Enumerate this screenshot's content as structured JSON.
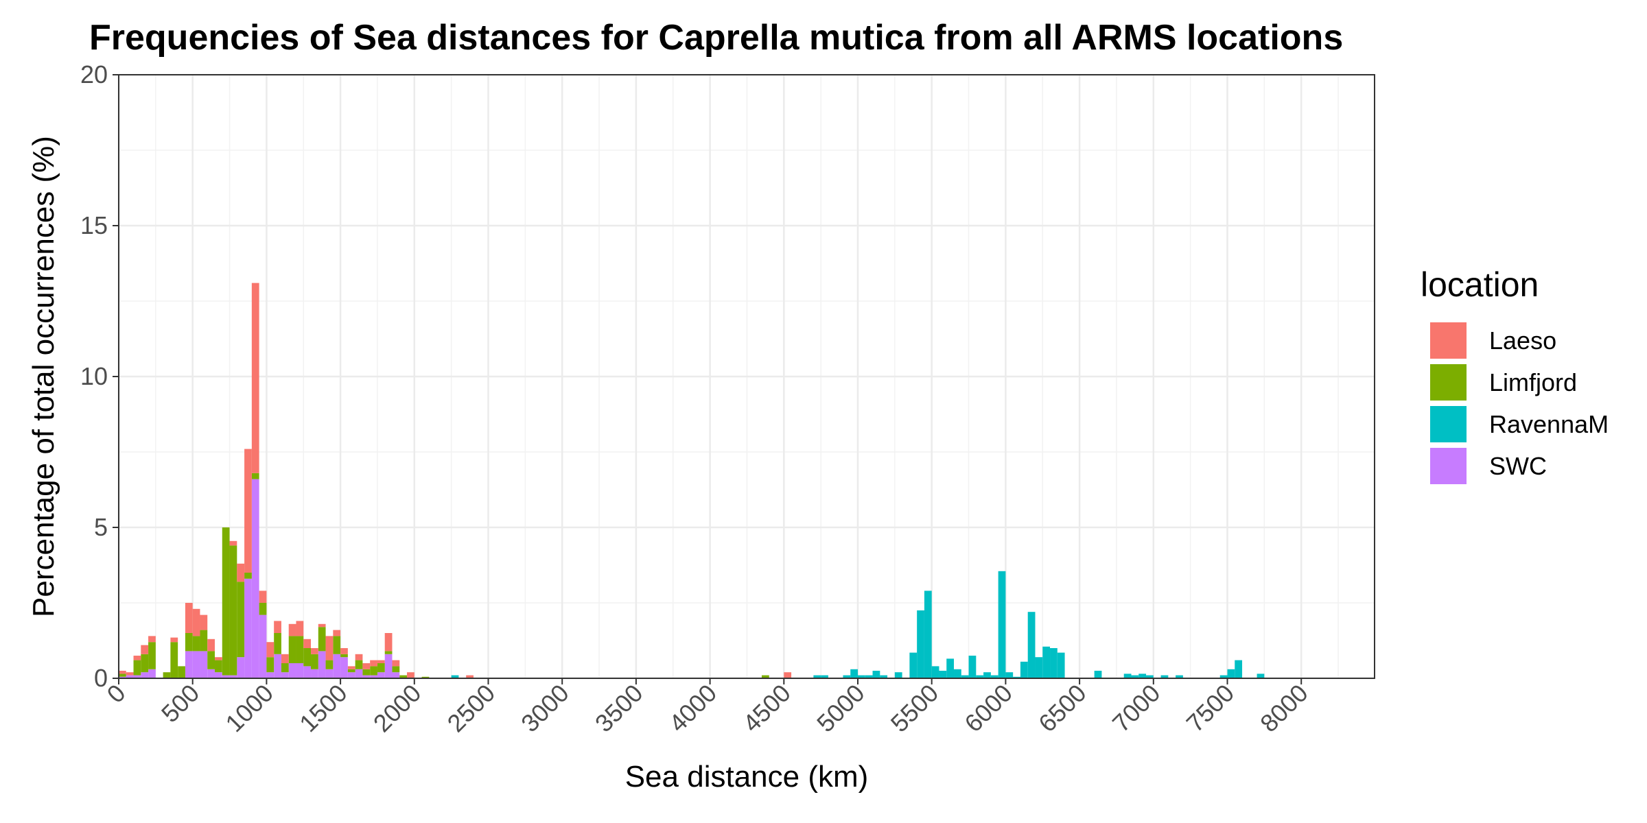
{
  "chart_data": {
    "type": "bar",
    "stacked": true,
    "title": "Frequencies of Sea distances for Caprella mutica from all ARMS locations",
    "xlabel": "Sea distance (km)",
    "ylabel": "Percentage of total occurrences (%)",
    "xlim": [
      0,
      8500
    ],
    "ylim": [
      0,
      20
    ],
    "bin_width": 50,
    "x_ticks": [
      0,
      500,
      1000,
      1500,
      2000,
      2500,
      3000,
      3500,
      4000,
      4500,
      5000,
      5500,
      6000,
      6500,
      7000,
      7500,
      8000
    ],
    "y_ticks": [
      0,
      5,
      10,
      15,
      20
    ],
    "grid": true,
    "legend": {
      "title": "location",
      "position": "right"
    },
    "stack_order": [
      "SWC",
      "RavennaM",
      "Limfjord",
      "Laeso"
    ],
    "series": [
      {
        "name": "Laeso",
        "color": "#F8766D",
        "points": [
          [
            0,
            0.1
          ],
          [
            50,
            0.1
          ],
          [
            100,
            0.15
          ],
          [
            150,
            0.3
          ],
          [
            200,
            0.2
          ],
          [
            350,
            0.15
          ],
          [
            450,
            1.0
          ],
          [
            500,
            0.9
          ],
          [
            550,
            0.5
          ],
          [
            600,
            0.4
          ],
          [
            650,
            0.1
          ],
          [
            750,
            0.15
          ],
          [
            800,
            0.6
          ],
          [
            850,
            4.1
          ],
          [
            900,
            6.3
          ],
          [
            950,
            0.4
          ],
          [
            1000,
            0.5
          ],
          [
            1050,
            0.4
          ],
          [
            1100,
            0.3
          ],
          [
            1150,
            0.4
          ],
          [
            1200,
            0.5
          ],
          [
            1250,
            0.3
          ],
          [
            1300,
            0.2
          ],
          [
            1350,
            0.1
          ],
          [
            1400,
            0.8
          ],
          [
            1450,
            0.2
          ],
          [
            1500,
            0.2
          ],
          [
            1550,
            0.1
          ],
          [
            1600,
            0.2
          ],
          [
            1650,
            0.2
          ],
          [
            1700,
            0.2
          ],
          [
            1750,
            0.1
          ],
          [
            1800,
            0.6
          ],
          [
            1850,
            0.2
          ],
          [
            1950,
            0.2
          ],
          [
            2350,
            0.1
          ],
          [
            4500,
            0.2
          ]
        ]
      },
      {
        "name": "Limfjord",
        "color": "#7CAE00",
        "points": [
          [
            0,
            0.1
          ],
          [
            100,
            0.5
          ],
          [
            150,
            0.6
          ],
          [
            200,
            0.9
          ],
          [
            300,
            0.2
          ],
          [
            350,
            1.2
          ],
          [
            400,
            0.4
          ],
          [
            450,
            0.6
          ],
          [
            500,
            0.5
          ],
          [
            550,
            0.7
          ],
          [
            600,
            0.6
          ],
          [
            650,
            0.4
          ],
          [
            700,
            4.9
          ],
          [
            750,
            4.3
          ],
          [
            800,
            2.5
          ],
          [
            850,
            0.2
          ],
          [
            900,
            0.2
          ],
          [
            950,
            0.4
          ],
          [
            1000,
            0.5
          ],
          [
            1050,
            0.7
          ],
          [
            1100,
            0.3
          ],
          [
            1150,
            0.9
          ],
          [
            1200,
            0.9
          ],
          [
            1250,
            0.6
          ],
          [
            1300,
            0.5
          ],
          [
            1350,
            0.8
          ],
          [
            1400,
            0.3
          ],
          [
            1450,
            0.6
          ],
          [
            1500,
            0.1
          ],
          [
            1550,
            0.1
          ],
          [
            1600,
            0.3
          ],
          [
            1650,
            0.2
          ],
          [
            1700,
            0.3
          ],
          [
            1750,
            0.3
          ],
          [
            1800,
            0.1
          ],
          [
            1850,
            0.2
          ],
          [
            1900,
            0.1
          ],
          [
            2050,
            0.05
          ],
          [
            4350,
            0.1
          ]
        ]
      },
      {
        "name": "RavennaM",
        "color": "#00BFC4",
        "points": [
          [
            2250,
            0.1
          ],
          [
            4700,
            0.1
          ],
          [
            4750,
            0.1
          ],
          [
            4900,
            0.1
          ],
          [
            4950,
            0.3
          ],
          [
            5000,
            0.1
          ],
          [
            5050,
            0.1
          ],
          [
            5100,
            0.25
          ],
          [
            5150,
            0.1
          ],
          [
            5250,
            0.2
          ],
          [
            5350,
            0.85
          ],
          [
            5400,
            2.25
          ],
          [
            5450,
            2.9
          ],
          [
            5500,
            0.4
          ],
          [
            5550,
            0.25
          ],
          [
            5600,
            0.65
          ],
          [
            5650,
            0.3
          ],
          [
            5700,
            0.1
          ],
          [
            5750,
            0.75
          ],
          [
            5800,
            0.1
          ],
          [
            5850,
            0.2
          ],
          [
            5900,
            0.1
          ],
          [
            5950,
            3.55
          ],
          [
            6000,
            0.2
          ],
          [
            6050,
            0.05
          ],
          [
            6100,
            0.55
          ],
          [
            6150,
            2.2
          ],
          [
            6200,
            0.7
          ],
          [
            6250,
            1.05
          ],
          [
            6300,
            1.0
          ],
          [
            6350,
            0.85
          ],
          [
            6600,
            0.25
          ],
          [
            6800,
            0.15
          ],
          [
            6850,
            0.1
          ],
          [
            6900,
            0.15
          ],
          [
            6950,
            0.1
          ],
          [
            7050,
            0.1
          ],
          [
            7150,
            0.1
          ],
          [
            7450,
            0.1
          ],
          [
            7500,
            0.3
          ],
          [
            7550,
            0.6
          ],
          [
            7700,
            0.15
          ]
        ]
      },
      {
        "name": "SWC",
        "color": "#C77CFF",
        "points": [
          [
            0,
            0.05
          ],
          [
            50,
            0.1
          ],
          [
            100,
            0.1
          ],
          [
            150,
            0.2
          ],
          [
            200,
            0.3
          ],
          [
            450,
            0.9
          ],
          [
            500,
            0.9
          ],
          [
            550,
            0.9
          ],
          [
            600,
            0.3
          ],
          [
            650,
            0.2
          ],
          [
            700,
            0.1
          ],
          [
            750,
            0.1
          ],
          [
            800,
            0.7
          ],
          [
            850,
            3.3
          ],
          [
            900,
            6.6
          ],
          [
            950,
            2.1
          ],
          [
            1000,
            0.2
          ],
          [
            1050,
            0.8
          ],
          [
            1100,
            0.2
          ],
          [
            1150,
            0.5
          ],
          [
            1200,
            0.5
          ],
          [
            1250,
            0.4
          ],
          [
            1300,
            0.3
          ],
          [
            1350,
            0.9
          ],
          [
            1400,
            0.3
          ],
          [
            1450,
            0.8
          ],
          [
            1500,
            0.7
          ],
          [
            1550,
            0.2
          ],
          [
            1600,
            0.3
          ],
          [
            1650,
            0.1
          ],
          [
            1700,
            0.1
          ],
          [
            1750,
            0.2
          ],
          [
            1800,
            0.8
          ],
          [
            1850,
            0.2
          ]
        ]
      }
    ]
  }
}
